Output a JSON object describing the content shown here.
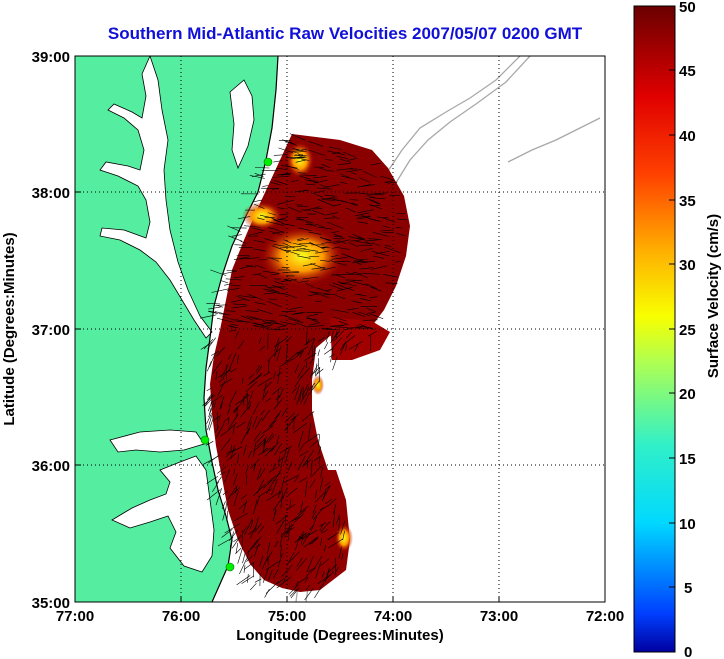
{
  "title": "Southern Mid-Atlantic Raw Velocities 2007/05/07 0200 GMT",
  "xlabel": "Longitude (Degrees:Minutes)",
  "ylabel": "Latitude (Degrees:Minutes)",
  "colorbar_label": "Surface Velocity (cm/s)",
  "x_ticks": [
    "77:00",
    "76:00",
    "75:00",
    "74:00",
    "73:00",
    "72:00"
  ],
  "y_ticks": [
    "39:00",
    "38:00",
    "37:00",
    "36:00",
    "35:00"
  ],
  "colorbar_ticks": [
    "50",
    "45",
    "40",
    "35",
    "30",
    "25",
    "20",
    "15",
    "10",
    "5",
    "0"
  ],
  "colors": {
    "land": "#55eea0",
    "coast_line": "#000000",
    "bathymetry": "#a8a8a8",
    "title": "#1010d8",
    "site_marker": "#00ee00"
  },
  "map_data": {
    "lon_range": [
      -77,
      -72
    ],
    "lat_range": [
      35,
      39
    ],
    "grid": "dotted",
    "colorbar_range": [
      0,
      50
    ],
    "colormap": "jet",
    "radar_sites": 3
  }
}
